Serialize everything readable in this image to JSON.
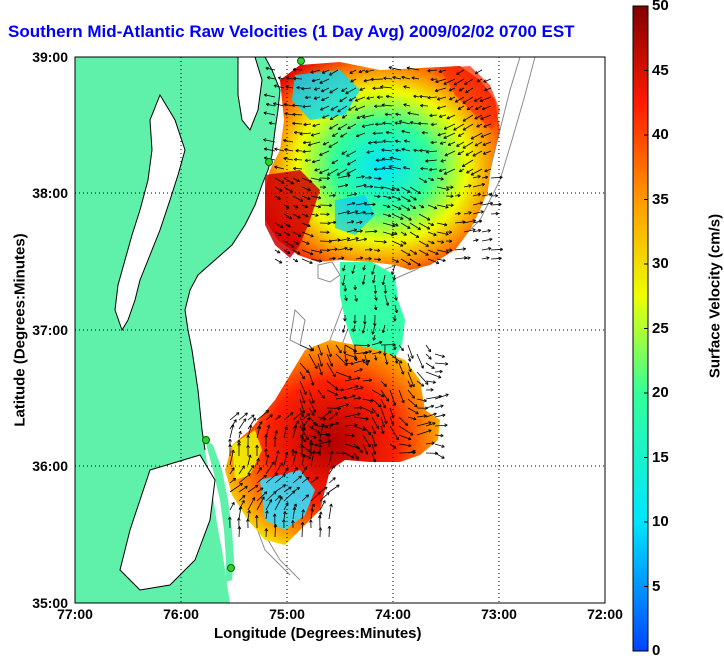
{
  "title": "Southern Mid-Atlantic Raw Velocities (1 Day Avg) 2009/02/02 0700 EST",
  "map": {
    "lon_range": [
      "77:00",
      "72:00"
    ],
    "lat_range": [
      "35:00",
      "39:00"
    ],
    "x_ticks": [
      "77:00",
      "76:00",
      "75:00",
      "74:00",
      "73:00",
      "72:00"
    ],
    "y_ticks": [
      "39:00",
      "38:00",
      "37:00",
      "36:00",
      "35:00"
    ],
    "x_label": "Longitude (Degrees:Minutes)",
    "y_label": "Latitude (Degrees:Minutes)",
    "grid": "dotted",
    "land_color": "#5ff0aa",
    "water_color": "#ffffff",
    "bathymetry_color": "#8c8c8c",
    "station_marker_color": "#2ed12e",
    "stations": 4
  },
  "colorbar": {
    "title": "Surface Velocity (cm/s)",
    "ticks": [
      "50",
      "45",
      "40",
      "35",
      "30",
      "25",
      "20",
      "15",
      "10",
      "5",
      "0"
    ],
    "min": 0,
    "max": 50,
    "colormap": "jet"
  }
}
